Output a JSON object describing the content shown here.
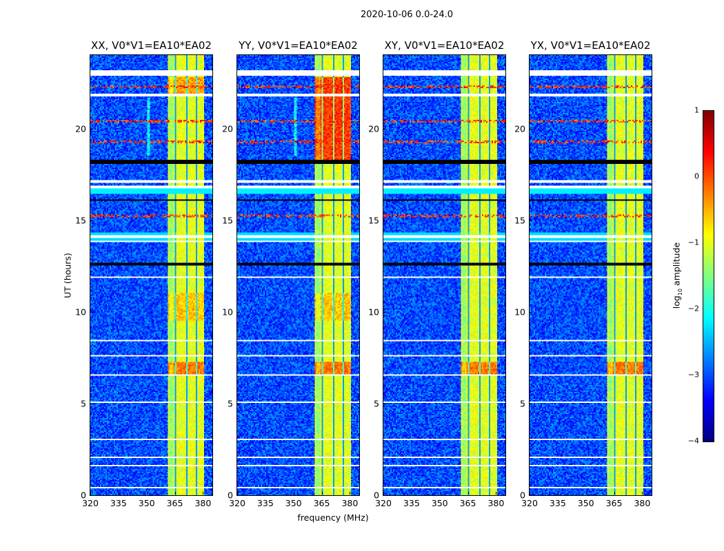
{
  "chart_data": {
    "type": "heatmap",
    "title": "2020-10-06 0.0-24.0",
    "xlabel": "frequency (MHz)",
    "ylabel": "UT (hours)",
    "xlim": [
      320,
      385
    ],
    "ylim": [
      0,
      24
    ],
    "x_ticks": [
      "320",
      "335",
      "350",
      "365",
      "380"
    ],
    "y_ticks": [
      "0",
      "5",
      "10",
      "15",
      "20"
    ],
    "panels": [
      {
        "title": "XX, V0*V1=EA10*EA02",
        "pol": "XX"
      },
      {
        "title": "YY, V0*V1=EA10*EA02",
        "pol": "YY"
      },
      {
        "title": "XY, V0*V1=EA10*EA02",
        "pol": "XY"
      },
      {
        "title": "YX, V0*V1=EA10*EA02",
        "pol": "YX"
      }
    ],
    "colorbar": {
      "label_main": "log",
      "label_sub": "10",
      "label_rest": " amplitude",
      "range": [
        -4,
        1
      ],
      "ticks": [
        "1",
        "0",
        "−1",
        "−2",
        "−3",
        "−4"
      ],
      "colormap": "jet"
    },
    "features": {
      "background_log_amplitude": -3,
      "bright_band_mhz": [
        361,
        380.5
      ],
      "bright_band_log_amplitude": -1,
      "band_dark_channels_mhz": [
        365.4,
        371,
        376.2
      ],
      "flagged_hours_white": [
        [
          22.85,
          23.15
        ],
        [
          21.75,
          21.9
        ],
        [
          17.05,
          17.2
        ],
        [
          16.75,
          16.85
        ],
        [
          14.0,
          14.15
        ],
        [
          13.8,
          13.9
        ],
        [
          11.85,
          11.95
        ],
        [
          9.95,
          10.0
        ],
        [
          8.4,
          8.5
        ],
        [
          7.55,
          7.65
        ],
        [
          6.5,
          6.58
        ],
        [
          5.05,
          5.1
        ],
        [
          2.0,
          2.1
        ],
        [
          1.55,
          1.65
        ],
        [
          0.35,
          0.42
        ],
        [
          3.0,
          3.05
        ]
      ],
      "flagged_hours_black": [
        [
          18.1,
          18.3
        ],
        [
          16.05,
          16.15
        ],
        [
          12.5,
          12.7
        ],
        [
          21.95,
          22.0
        ],
        [
          7.7,
          7.75
        ]
      ],
      "rfi_hours": [
        20.4,
        19.3,
        22.3,
        16.6,
        15.2
      ],
      "high_band_hours": [
        [
          6.6,
          7.3
        ]
      ]
    }
  }
}
